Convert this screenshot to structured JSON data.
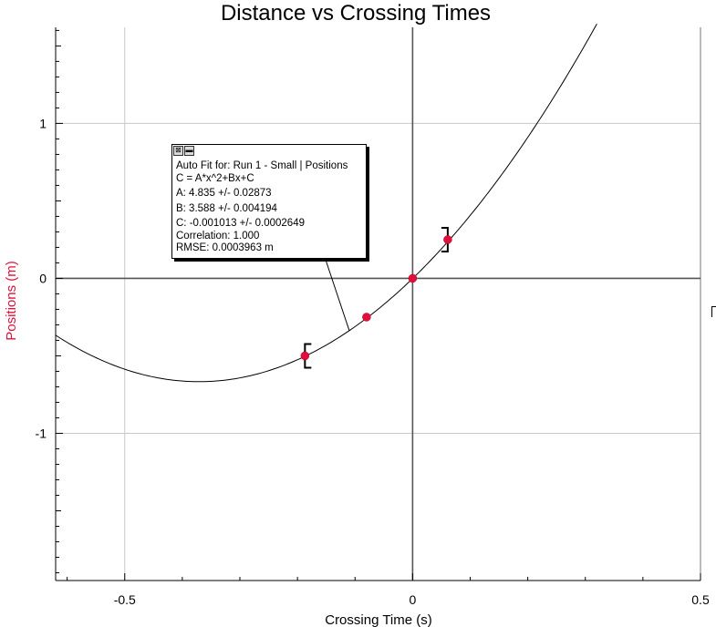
{
  "chart_data": {
    "type": "scatter",
    "title": "Distance vs Crossing Times",
    "xlabel": "Crossing Time (s)",
    "ylabel": "Positions (m)",
    "xlim": [
      -0.62,
      0.5
    ],
    "ylim": [
      -1.95,
      1.62
    ],
    "x_ticks": [
      -0.5,
      0,
      0.5
    ],
    "x_tick_labels": [
      "-0.5",
      "0",
      "0.5"
    ],
    "y_ticks": [
      -1,
      0,
      1
    ],
    "y_tick_labels": [
      "-1",
      "0",
      "1"
    ],
    "grid": true,
    "legend": "none",
    "colors": {
      "points": "#e0103a",
      "ylabel": "#e0103a",
      "fit_line": "#000000",
      "axes": "#555555",
      "grid": "#c8c8c8"
    },
    "series": [
      {
        "points": [
          {
            "x": -0.187,
            "y": -0.5
          },
          {
            "x": -0.08,
            "y": -0.25
          },
          {
            "x": 0.0,
            "y": 0.0
          },
          {
            "x": 0.061,
            "y": 0.25
          }
        ],
        "bracketed_points": [
          0,
          3
        ]
      }
    ],
    "fit": {
      "equation": "C = A*x^2+Bx+C",
      "A": 4.835,
      "B": 3.588,
      "C": -0.001013,
      "x_range": [
        -0.62,
        0.32
      ]
    }
  },
  "fit_box": {
    "close_icon": "⊠",
    "menu_icon": "▬",
    "title": "Auto Fit for: Run 1 - Small | Positions",
    "equation": "C = A*x^2+Bx+C",
    "a": "A: 4.835 +/- 0.02873",
    "b": "B: 3.588 +/- 0.004194",
    "c": "C: -0.001013 +/- 0.0002649",
    "correlation": "Correlation: 1.000",
    "rmse": "RMSE: 0.0003963 m"
  }
}
